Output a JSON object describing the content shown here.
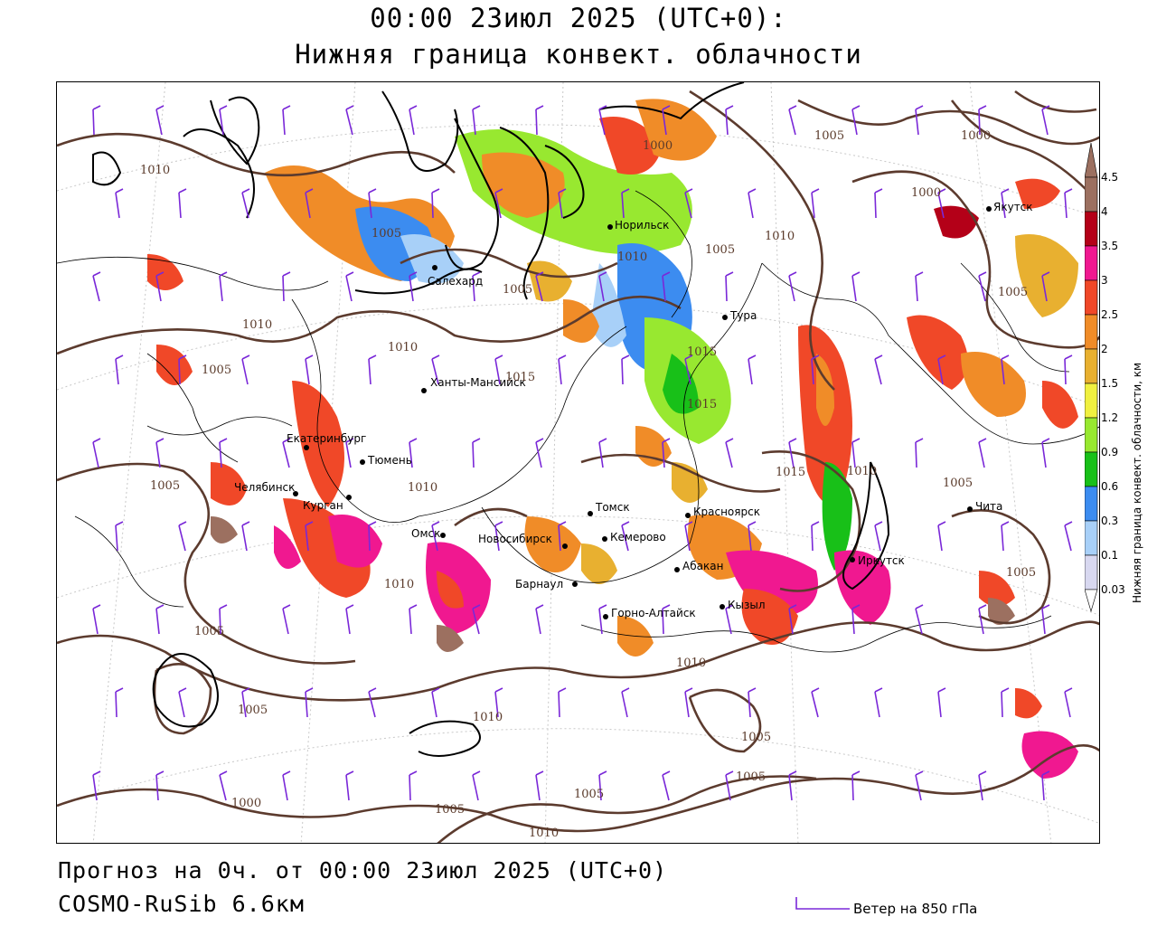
{
  "header": {
    "title_line1": "00:00 23июл 2025 (UTC+0):",
    "title_line2": "Нижняя граница конвект. облачности"
  },
  "map": {
    "region": "Siberia",
    "isobar_labels": [
      "1010",
      "1005",
      "1010",
      "1010",
      "1005",
      "1010",
      "1015",
      "1005",
      "1015",
      "1010",
      "1005",
      "1005",
      "1010",
      "1015",
      "1000",
      "1005",
      "1010",
      "1005",
      "1000",
      "1005",
      "1005",
      "1010",
      "1010",
      "1005",
      "1005",
      "1005",
      "1005",
      "1010",
      "1005",
      "1000",
      "1000",
      "1005",
      "1010",
      "1015"
    ],
    "cities": [
      {
        "name": "Норильск"
      },
      {
        "name": "Якутск"
      },
      {
        "name": "Салехард"
      },
      {
        "name": "Тура"
      },
      {
        "name": "Ханты-Мансийск"
      },
      {
        "name": "Екатеринбург"
      },
      {
        "name": "Тюмень"
      },
      {
        "name": "Челябинск"
      },
      {
        "name": "Курган"
      },
      {
        "name": "Омск"
      },
      {
        "name": "Новосибирск"
      },
      {
        "name": "Томск"
      },
      {
        "name": "Кемерово"
      },
      {
        "name": "Красноярск"
      },
      {
        "name": "Барнаул"
      },
      {
        "name": "Абакан"
      },
      {
        "name": "Горно-Алтайск"
      },
      {
        "name": "Кызыл"
      },
      {
        "name": "Иркутск"
      },
      {
        "name": "Чита"
      }
    ],
    "colors": {
      "coast": "#000000",
      "isobar": "#5c3b2e",
      "border": "#000000",
      "wind": "#7a28d8"
    }
  },
  "colorbar": {
    "title": "Нижняя граница конвект. облачности, км",
    "levels": [
      "0.03",
      "0.1",
      "0.3",
      "0.6",
      "0.9",
      "1.2",
      "1.5",
      "2",
      "2.5",
      "3",
      "3.5",
      "4",
      "4.5"
    ],
    "colors": [
      "#ffffff",
      "#d8d8f0",
      "#a8d0f8",
      "#3c8cf0",
      "#18c018",
      "#98e830",
      "#f0f040",
      "#e8b030",
      "#f08c28",
      "#f04828",
      "#f01890",
      "#b40018",
      "#9c7060"
    ]
  },
  "footer": {
    "forecast_line": "Прогноз на 0ч. от 00:00 23июл 2025 (UTC+0)",
    "model_line": "COSMO-RuSib 6.6км",
    "wind_legend": "Ветер на 850 гПа"
  }
}
